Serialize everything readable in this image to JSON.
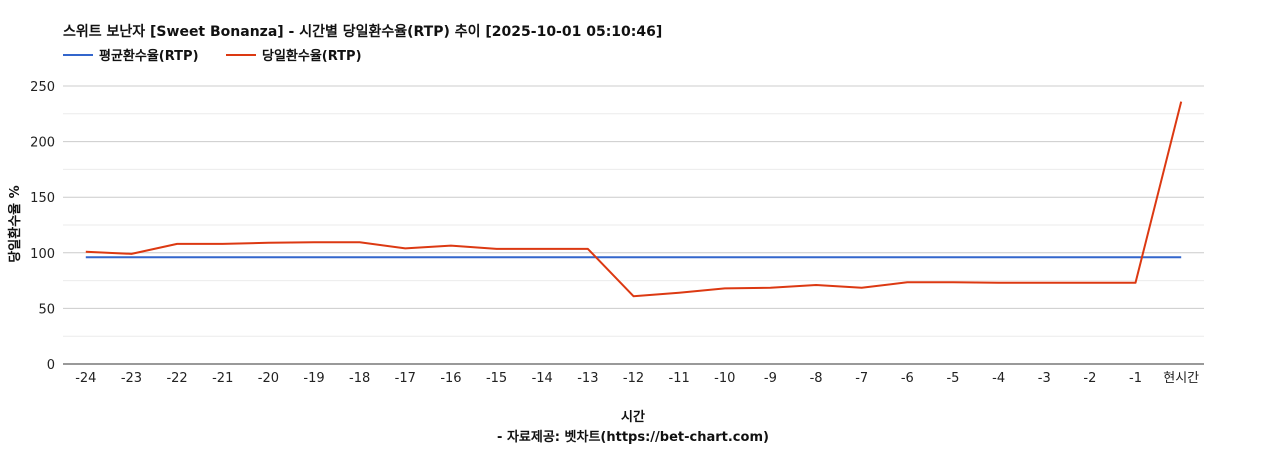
{
  "chart_data": {
    "type": "line",
    "title": "스위트 보난자 [Sweet Bonanza] - 시간별 당일환수율(RTP) 추이 [2025-10-01 05:10:46]",
    "xlabel": "시간",
    "ylabel": "당일환수율 %",
    "source": "- 자료제공: 벳차트(https://bet-chart.com)",
    "legend_position": "top-left",
    "grid": true,
    "ylim": [
      0,
      250
    ],
    "yticks": [
      0,
      50,
      100,
      150,
      200,
      250
    ],
    "categories": [
      "-24",
      "-23",
      "-22",
      "-21",
      "-20",
      "-19",
      "-18",
      "-17",
      "-16",
      "-15",
      "-14",
      "-13",
      "-12",
      "-11",
      "-10",
      "-9",
      "-8",
      "-7",
      "-6",
      "-5",
      "-4",
      "-3",
      "-2",
      "-1",
      "현시간"
    ],
    "series": [
      {
        "name": "평균환수율(RTP)",
        "color": "#3366cc",
        "values": [
          96,
          96,
          96,
          96,
          96,
          96,
          96,
          96,
          96,
          96,
          96,
          96,
          96,
          96,
          96,
          96,
          96,
          96,
          96,
          96,
          96,
          96,
          96,
          96,
          96
        ]
      },
      {
        "name": "당일환수율(RTP)",
        "color": "#dc3912",
        "values": [
          101,
          99,
          108,
          108,
          109,
          109.5,
          109.5,
          104,
          106.5,
          103.5,
          103.5,
          103.5,
          61,
          64,
          68,
          68.5,
          71,
          68.5,
          73.5,
          73.5,
          73,
          73,
          73,
          73,
          236
        ]
      }
    ]
  }
}
